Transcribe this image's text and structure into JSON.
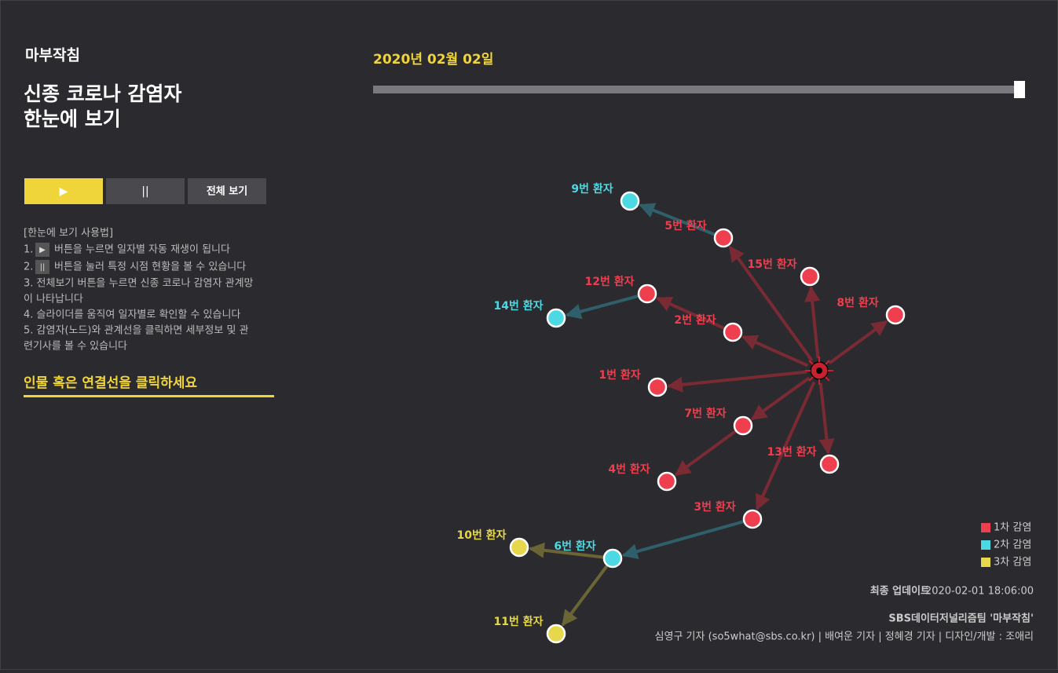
{
  "header": {
    "logo": "마부작침",
    "title": [
      "신종 코로나 감염자",
      "한눈에 보기"
    ]
  },
  "controls": {
    "play": "▶",
    "pause": "||",
    "all": "전체 보기"
  },
  "instructions": {
    "heading": "[한눈에 보기 사용법]",
    "lines": [
      {
        "num": "1.",
        "icon": "▶",
        "text": "버튼을 누르면 일자별 자동 재생이 됩니다"
      },
      {
        "num": "2.",
        "icon": "||",
        "text": "버튼을 눌러 특정 시점 현황을 볼 수 있습니다"
      }
    ],
    "more": [
      "3. 전체보기 버튼을 누르면 신종 코로나 감염자 관계망",
      "이 나타납니다",
      "4. 슬라이더를 움직여 일자별로 확인할 수 있습니다",
      "5. 감염자(노드)와 관계선을 클릭하면 세부정보 및 관",
      "련기사를 볼 수 있습니다"
    ]
  },
  "prompt": "인물 혹은 연결선을 클릭하세요",
  "date": "2020년 02월 02일",
  "network": {
    "nodes": [
      {
        "label": "9번 환자",
        "color": "#4dd9e3"
      },
      {
        "label": "5번 환자",
        "color": "#ef3f4f"
      },
      {
        "label": "15번 환자",
        "color": "#ef3f4f"
      },
      {
        "label": "12번 환자",
        "color": "#ef3f4f"
      },
      {
        "label": "14번 환자",
        "color": "#4dd9e3"
      },
      {
        "label": "8번 환자",
        "color": "#ef3f4f"
      },
      {
        "label": "2번 환자",
        "color": "#ef3f4f"
      },
      {
        "label": "1번 환자",
        "color": "#ef3f4f"
      },
      {
        "label": "7번 환자",
        "color": "#ef3f4f"
      },
      {
        "label": "13번 환자",
        "color": "#ef3f4f"
      },
      {
        "label": "4번 환자",
        "color": "#ef3f4f"
      },
      {
        "label": "3번 환자",
        "color": "#ef3f4f"
      },
      {
        "label": "6번 환자",
        "color": "#4dd9e3"
      },
      {
        "label": "10번 환자",
        "color": "#e6d84a"
      },
      {
        "label": "11번 환자",
        "color": "#e6d84a"
      }
    ]
  },
  "legend": [
    {
      "label": "1차 감염",
      "color": "#ef3f4f"
    },
    {
      "label": "2차 감염",
      "color": "#4dd9e3"
    },
    {
      "label": "3차 감염",
      "color": "#e6d84a"
    }
  ],
  "footer": {
    "update_label": "최종 업데이트",
    "update_time": "2020-02-01 18:06:00",
    "team": "SBS데이터저널리즘팀 '마부작침'",
    "credits": "심영구 기자 (so5what@sbs.co.kr) | 배여운 기자 | 정혜경 기자 | 디자인/개발 : 조애리"
  }
}
